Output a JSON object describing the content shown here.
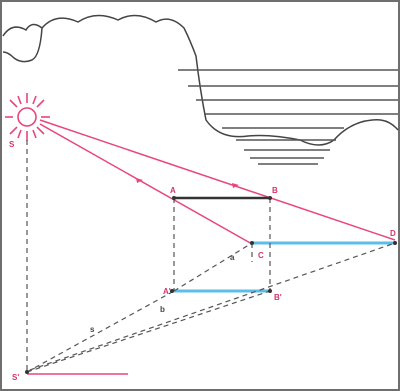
{
  "labels": {
    "sun": "S",
    "sun_ground": "S'",
    "point_a": "A",
    "point_b": "B",
    "point_c": "C",
    "point_d": "D",
    "point_a_ground": "A'",
    "point_b_ground": "B'",
    "small_a": "a",
    "small_b": "b",
    "small_s": "s"
  },
  "colors": {
    "ray": "#e8467c",
    "shadow": "#5bbde8",
    "object": "#333333",
    "dashed": "#555555",
    "cloud": "#444444",
    "frame": "#6f6f6f"
  }
}
